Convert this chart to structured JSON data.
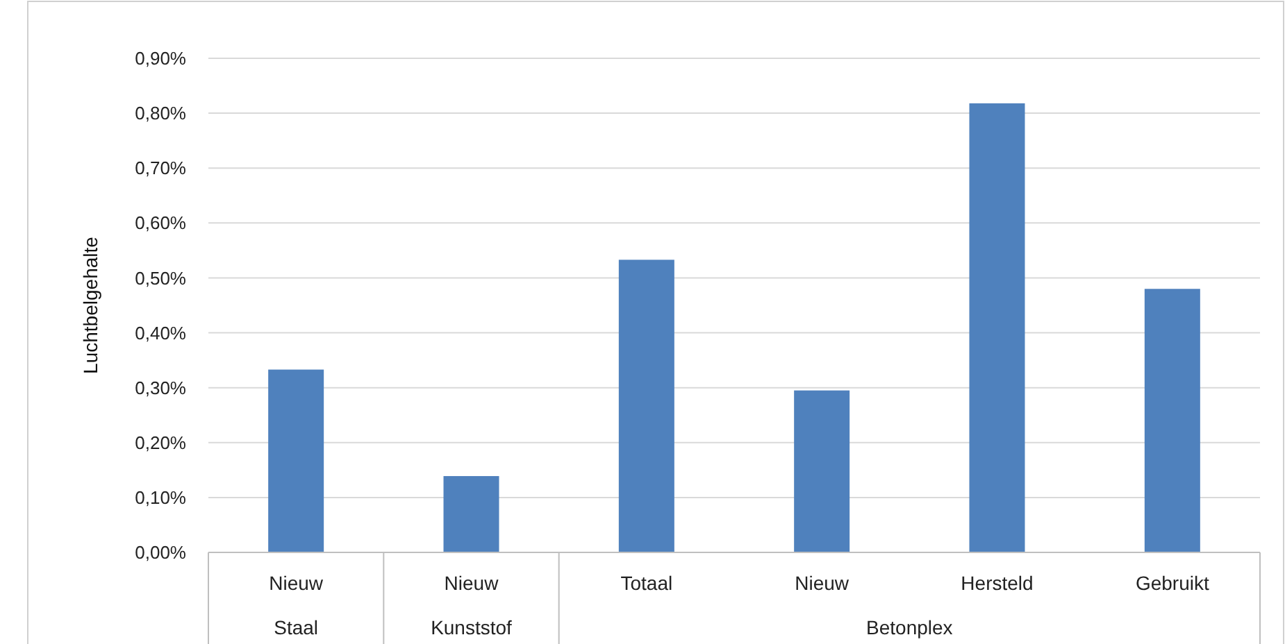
{
  "chart_data": {
    "type": "bar",
    "ylabel": "Luchtbelgehalte",
    "categories": [
      "Nieuw",
      "Nieuw",
      "Totaal",
      "Nieuw",
      "Hersteld",
      "Gebruikt"
    ],
    "values": [
      0.333,
      0.139,
      0.533,
      0.295,
      0.818,
      0.48
    ],
    "color": "#4f81bd",
    "ylim": [
      0,
      0.9
    ],
    "yticks": [
      {
        "value": 0,
        "label": "0,00%"
      },
      {
        "value": 0.1,
        "label": "0,10%"
      },
      {
        "value": 0.2,
        "label": "0,20%"
      },
      {
        "value": 0.3,
        "label": "0,30%"
      },
      {
        "value": 0.4,
        "label": "0,40%"
      },
      {
        "value": 0.5,
        "label": "0,50%"
      },
      {
        "value": 0.6,
        "label": "0,60%"
      },
      {
        "value": 0.7,
        "label": "0,70%"
      },
      {
        "value": 0.8,
        "label": "0,80%"
      },
      {
        "value": 0.9,
        "label": "0,90%"
      }
    ],
    "grid": "y",
    "annotations": [
      "Staal",
      "Kunststof",
      "Betonplex"
    ]
  }
}
